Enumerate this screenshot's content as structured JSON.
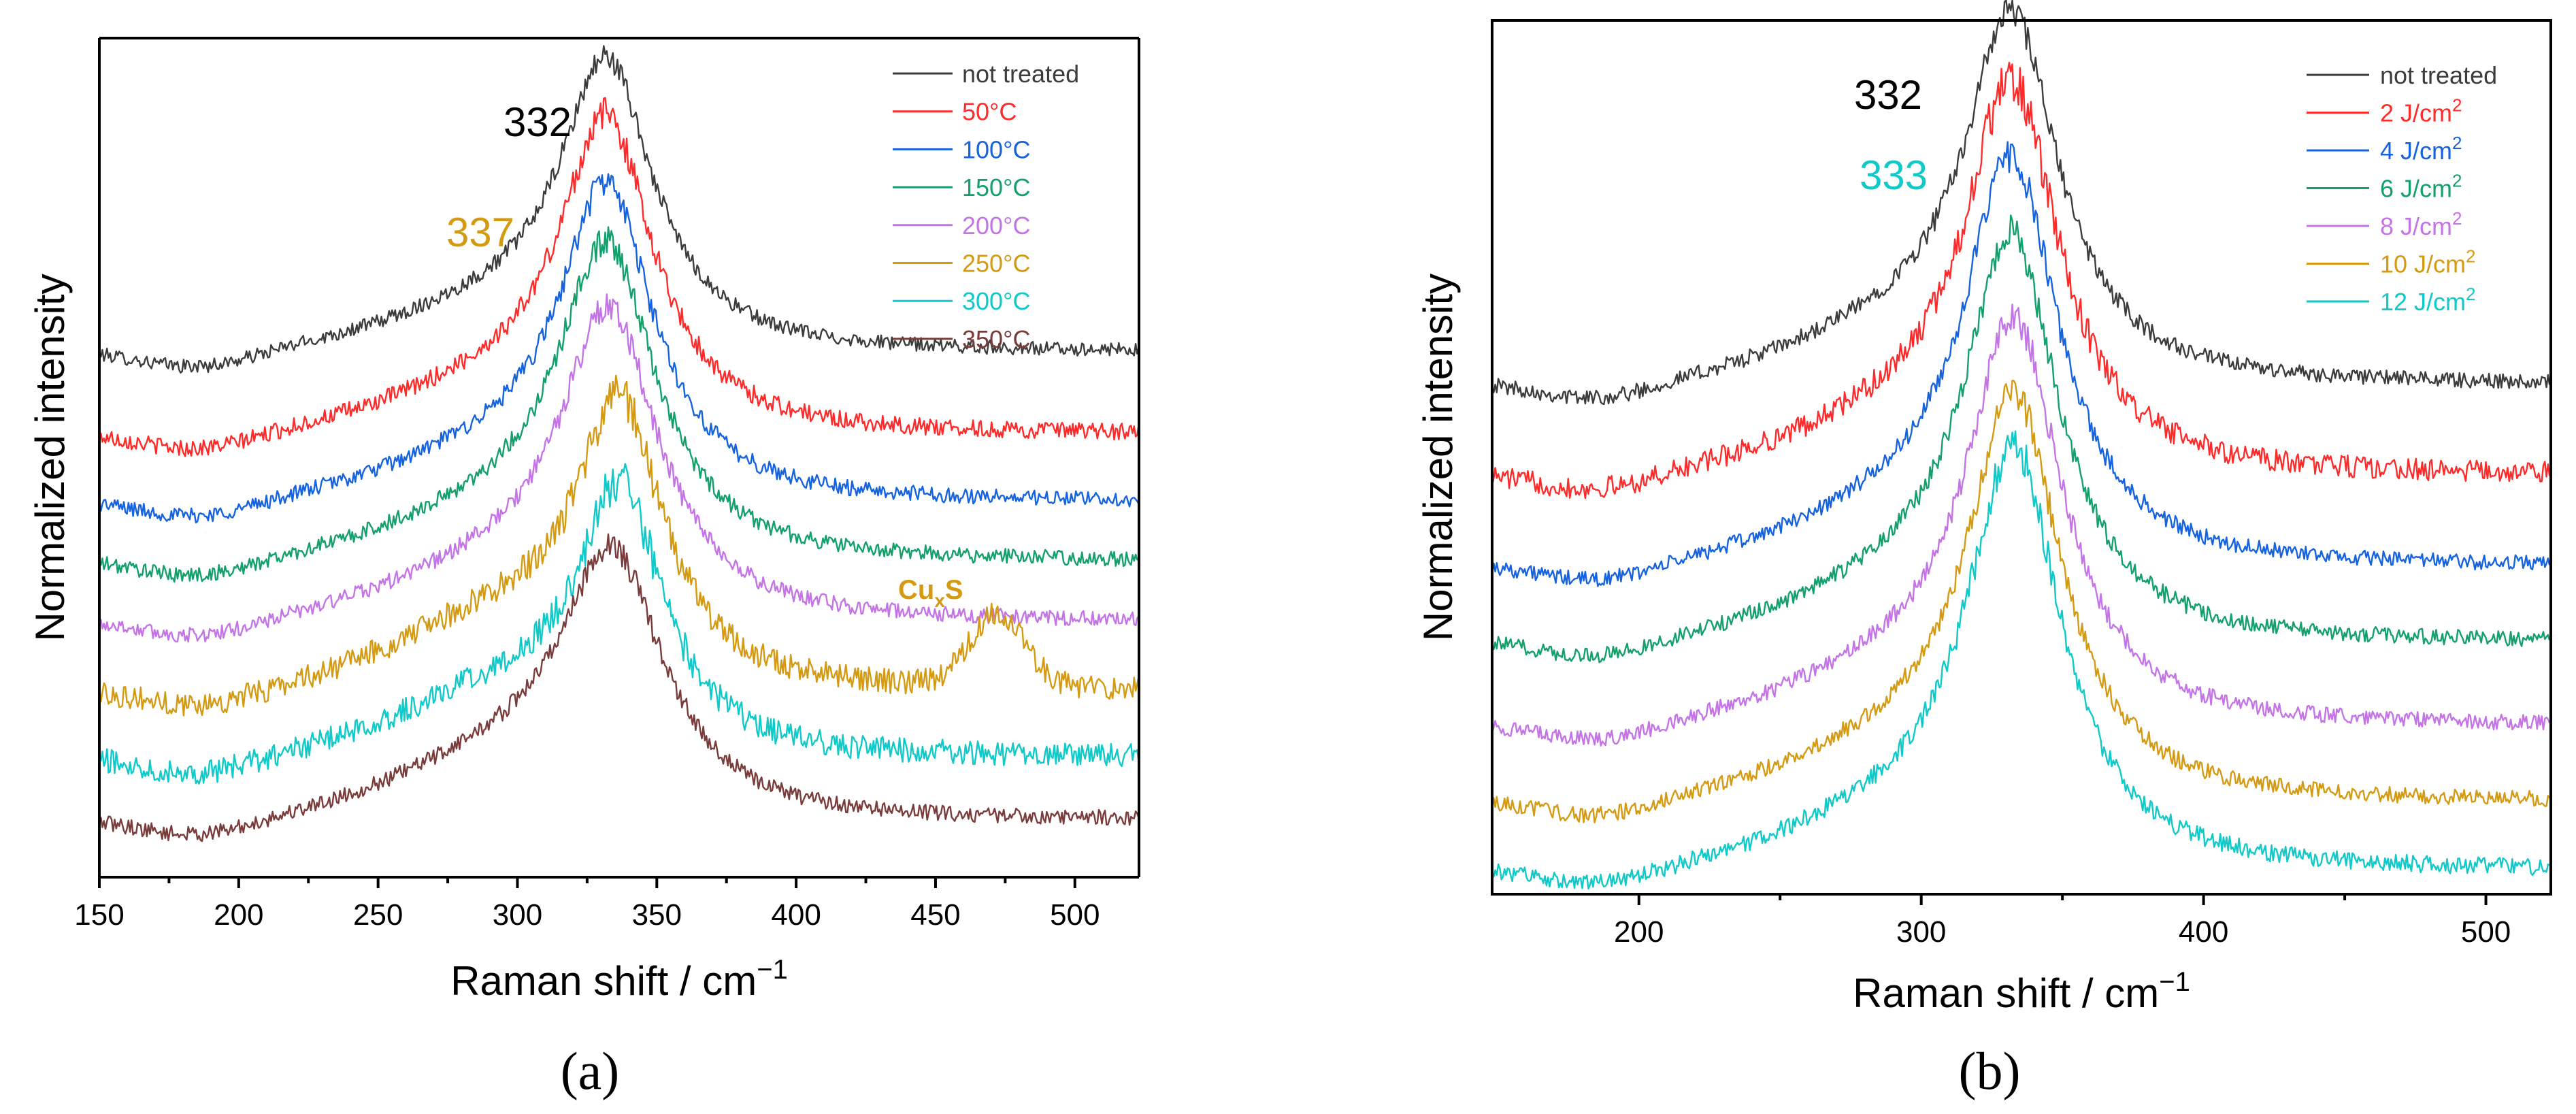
{
  "chart_data": [
    {
      "panel": "a",
      "type": "line",
      "caption": "(a)",
      "xlabel": "Raman shift / cm",
      "xlabel_sup": "−1",
      "ylabel": "Normalized intensity",
      "xlim": [
        150,
        523
      ],
      "ylim": [
        0,
        11.2
      ],
      "xticks": [
        150,
        200,
        250,
        300,
        350,
        400,
        450,
        500
      ],
      "grid": false,
      "legend_position": "top-right",
      "peak_labels": [
        {
          "text": "332",
          "color": "#000000",
          "x": 332
        },
        {
          "text": "337",
          "color": "#d49a12",
          "x": 337
        }
      ],
      "annotations": [
        {
          "text": "Cu",
          "sub": "x",
          "suffix": "S",
          "color": "#d49a12",
          "x": 472
        }
      ],
      "series": [
        {
          "name": "not treated",
          "color": "#3c3c3c",
          "baseline": 7.0,
          "peak_center": 332,
          "peak_height": 3.6,
          "peak_width": 20,
          "broad_height": 0.5,
          "noise": 0.09
        },
        {
          "name": "50°C",
          "color": "#ff2b2b",
          "baseline": 5.9,
          "peak_center": 332,
          "peak_height": 3.9,
          "peak_width": 20,
          "broad_height": 0.55,
          "noise": 0.11
        },
        {
          "name": "100°C",
          "color": "#1663e0",
          "baseline": 5.0,
          "peak_center": 332,
          "peak_height": 3.9,
          "peak_width": 20,
          "broad_height": 0.55,
          "noise": 0.1
        },
        {
          "name": "150°C",
          "color": "#13a06b",
          "baseline": 4.2,
          "peak_center": 332,
          "peak_height": 3.9,
          "peak_width": 21,
          "broad_height": 0.55,
          "noise": 0.1
        },
        {
          "name": "200°C",
          "color": "#c474e6",
          "baseline": 3.4,
          "peak_center": 333,
          "peak_height": 3.8,
          "peak_width": 21,
          "broad_height": 0.6,
          "noise": 0.1
        },
        {
          "name": "250°C",
          "color": "#d49a12",
          "baseline": 2.5,
          "peak_center": 337,
          "peak_height": 3.4,
          "peak_width": 18,
          "broad_height": 0.9,
          "noise": 0.16,
          "second_peak": {
            "center": 472,
            "height": 0.95,
            "width": 14
          }
        },
        {
          "name": "300°C",
          "color": "#10c9c9",
          "baseline": 1.6,
          "peak_center": 337,
          "peak_height": 3.2,
          "peak_width": 18,
          "broad_height": 0.8,
          "noise": 0.16
        },
        {
          "name": "350°C",
          "color": "#7a3b3b",
          "baseline": 0.75,
          "peak_center": 334,
          "peak_height": 3.2,
          "peak_width": 22,
          "broad_height": 0.7,
          "noise": 0.1
        }
      ]
    },
    {
      "panel": "b",
      "type": "line",
      "caption": "(b)",
      "xlabel": "Raman shift / cm",
      "xlabel_sup": "−1",
      "ylabel": "Normalized intensity",
      "xlim": [
        148,
        523
      ],
      "ylim": [
        0,
        11.5
      ],
      "xticks": [
        200,
        300,
        400,
        500
      ],
      "grid": false,
      "legend_position": "top-right",
      "peak_labels": [
        {
          "text": "332",
          "color": "#000000",
          "x": 332
        },
        {
          "text": "333",
          "color": "#10c9c9",
          "x": 333
        }
      ],
      "annotations": [],
      "series": [
        {
          "name": "not treated",
          "color": "#3c3c3c",
          "baseline": 6.7,
          "peak_center": 332,
          "peak_height": 4.5,
          "peak_width": 20,
          "broad_height": 0.6,
          "noise": 0.1
        },
        {
          "name": "2 J/cm",
          "sup": "2",
          "color": "#ff2b2b",
          "baseline": 5.5,
          "peak_center": 332,
          "peak_height": 4.8,
          "peak_width": 20,
          "broad_height": 0.6,
          "noise": 0.14
        },
        {
          "name": "4 J/cm",
          "sup": "2",
          "color": "#1663e0",
          "baseline": 4.3,
          "peak_center": 332,
          "peak_height": 5.0,
          "peak_width": 20,
          "broad_height": 0.6,
          "noise": 0.1
        },
        {
          "name": "6 J/cm",
          "sup": "2",
          "color": "#13a06b",
          "baseline": 3.3,
          "peak_center": 332,
          "peak_height": 5.0,
          "peak_width": 20,
          "broad_height": 0.6,
          "noise": 0.1
        },
        {
          "name": "8 J/cm",
          "sup": "2",
          "color": "#c474e6",
          "baseline": 2.2,
          "peak_center": 333,
          "peak_height": 5.0,
          "peak_width": 20,
          "broad_height": 0.6,
          "noise": 0.1
        },
        {
          "name": "10 J/cm",
          "sup": "2",
          "color": "#d49a12",
          "baseline": 1.2,
          "peak_center": 333,
          "peak_height": 5.0,
          "peak_width": 20,
          "broad_height": 0.6,
          "noise": 0.1
        },
        {
          "name": "12 J/cm",
          "sup": "2",
          "color": "#10c9c9",
          "baseline": 0.3,
          "peak_center": 333,
          "peak_height": 5.2,
          "peak_width": 20,
          "broad_height": 0.6,
          "noise": 0.11
        }
      ]
    }
  ]
}
